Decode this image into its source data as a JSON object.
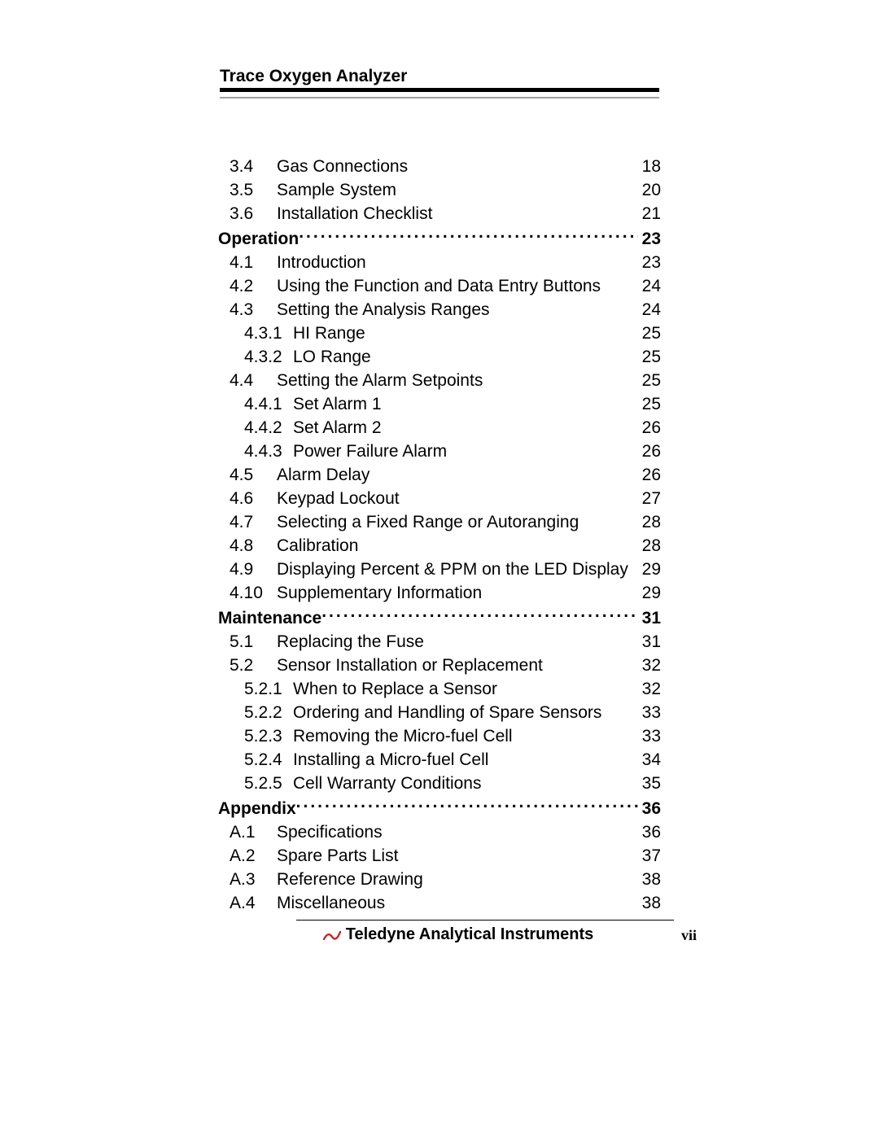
{
  "header": {
    "title": "Trace Oxygen Analyzer"
  },
  "footer": {
    "company": "Teledyne Analytical Instruments",
    "page": "vii",
    "logo_color": "#c62828"
  },
  "toc": [
    {
      "kind": "l2",
      "num": "3.4",
      "label": "Gas Connections",
      "page": "18"
    },
    {
      "kind": "l2",
      "num": "3.5",
      "label": "Sample System",
      "page": "20"
    },
    {
      "kind": "l2",
      "num": "3.6",
      "label": "Installation Checklist",
      "page": "21"
    },
    {
      "kind": "section",
      "label": "Operation",
      "page": "23"
    },
    {
      "kind": "l2",
      "num": "4.1",
      "label": "Introduction",
      "page": "23"
    },
    {
      "kind": "l2",
      "num": "4.2",
      "label": "Using the Function and Data Entry Buttons",
      "page": "24"
    },
    {
      "kind": "l2",
      "num": "4.3",
      "label": "Setting the Analysis Ranges",
      "page": "24"
    },
    {
      "kind": "l3",
      "num": "4.3.1",
      "label": "HI Range",
      "page": "25"
    },
    {
      "kind": "l3",
      "num": "4.3.2",
      "label": "LO Range",
      "page": "25"
    },
    {
      "kind": "l2",
      "num": "4.4",
      "label": "Setting the Alarm Setpoints",
      "page": "25"
    },
    {
      "kind": "l3",
      "num": "4.4.1",
      "label": "Set Alarm 1",
      "page": "25"
    },
    {
      "kind": "l3",
      "num": "4.4.2",
      "label": "Set Alarm 2",
      "page": "26"
    },
    {
      "kind": "l3",
      "num": "4.4.3",
      "label": "Power Failure Alarm",
      "page": "26"
    },
    {
      "kind": "l2",
      "num": "4.5",
      "label": "Alarm Delay",
      "page": "26"
    },
    {
      "kind": "l2",
      "num": "4.6",
      "label": "Keypad Lockout",
      "page": "27"
    },
    {
      "kind": "l2",
      "num": "4.7",
      "label": "Selecting a Fixed Range or Autoranging",
      "page": "28"
    },
    {
      "kind": "l2",
      "num": "4.8",
      "label": "Calibration",
      "page": "28"
    },
    {
      "kind": "l2",
      "num": "4.9",
      "label": "Displaying Percent & PPM on the LED Display",
      "page": "29"
    },
    {
      "kind": "l2",
      "num": "4.10",
      "label": "Supplementary Information",
      "page": "29"
    },
    {
      "kind": "section",
      "label": "Maintenance",
      "page": "31"
    },
    {
      "kind": "l2",
      "num": "5.1",
      "label": "Replacing the Fuse",
      "page": "31"
    },
    {
      "kind": "l2",
      "num": "5.2",
      "label": "Sensor Installation or Replacement",
      "page": "32"
    },
    {
      "kind": "l3",
      "num": "5.2.1",
      "label": "When to Replace a Sensor",
      "page": "32"
    },
    {
      "kind": "l3",
      "num": "5.2.2",
      "label": "Ordering and Handling of Spare Sensors",
      "page": "33"
    },
    {
      "kind": "l3",
      "num": "5.2.3",
      "label": "Removing the Micro-fuel Cell",
      "page": "33"
    },
    {
      "kind": "l3",
      "num": "5.2.4",
      "label": "Installing a Micro-fuel Cell",
      "page": "34"
    },
    {
      "kind": "l3",
      "num": "5.2.5",
      "label": "Cell Warranty Conditions",
      "page": "35"
    },
    {
      "kind": "section",
      "label": "Appendix ",
      "page": "36"
    },
    {
      "kind": "l2",
      "num": "A.1",
      "label": "Specifications",
      "page": "36"
    },
    {
      "kind": "l2",
      "num": "A.2",
      "label": "Spare Parts List",
      "page": "37"
    },
    {
      "kind": "l2",
      "num": "A.3",
      "label": "Reference Drawing",
      "page": "38"
    },
    {
      "kind": "l2",
      "num": "A.4",
      "label": "Miscellaneous",
      "page": "38"
    }
  ]
}
